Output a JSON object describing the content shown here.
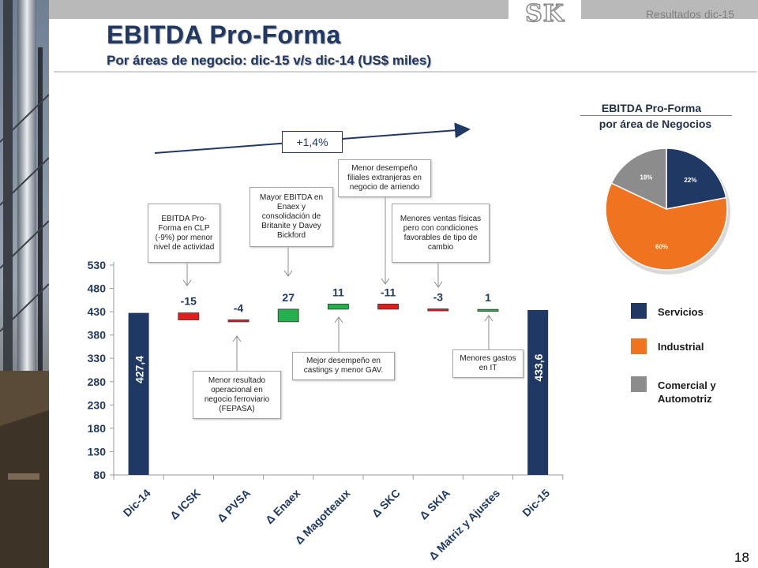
{
  "header": {
    "period_label": "Resultados dic-15",
    "logo_text": "SK",
    "title": "EBITDA Pro-Forma",
    "subtitle": "Por áreas de negocio: dic-15 v/s dic-14 (US$ miles)",
    "page_number": "18"
  },
  "growth_label": "+1,4%",
  "annotations": [
    {
      "key": "icsk",
      "text": "EBITDA Pro-Forma en CLP (-9%) por menor nivel de actividad"
    },
    {
      "key": "pvsa",
      "text": "Menor resultado operacional en negocio ferroviario (FEPASA)"
    },
    {
      "key": "enaex",
      "text": "Mayor EBITDA en Enaex y consolidación de Britanite y Davey Bickford"
    },
    {
      "key": "magotteaux",
      "text": "Mejor desempeño en castings y menor GAV."
    },
    {
      "key": "skc",
      "text": "Menor desempeño filiales extranjeras en negocio de arriendo"
    },
    {
      "key": "skia",
      "text": "Menores ventas físicas pero con condiciones favorables de tipo de cambio"
    },
    {
      "key": "matriz",
      "text": "Menores gastos en IT"
    }
  ],
  "pie": {
    "title_line1": "EBITDA Pro-Forma",
    "title_line2": "por área de Negocios",
    "legend": [
      {
        "label": "Servicios",
        "color": "#1f3864"
      },
      {
        "label": "Industrial",
        "color": "#f07320"
      },
      {
        "label": "Comercial y Automotriz",
        "color": "#8c8c8c"
      }
    ]
  },
  "chart_data": [
    {
      "type": "bar",
      "subtype": "waterfall",
      "categories": [
        "Dic-14",
        "Δ ICSK",
        "Δ PVSA",
        "Δ Enaex",
        "Δ Magotteaux",
        "Δ SKC",
        "Δ SKIA",
        "Δ Matriz y Ajustes",
        "Dic-15"
      ],
      "values": [
        427.4,
        -15,
        -4,
        27,
        11,
        -11,
        -3,
        1,
        433.6
      ],
      "data_labels": [
        "427,4",
        "-15",
        "-4",
        "27",
        "11",
        "-11",
        "-3",
        "1",
        "433,6"
      ],
      "bar_kinds": [
        "total",
        "delta",
        "delta",
        "delta",
        "delta",
        "delta",
        "delta",
        "delta",
        "total"
      ],
      "yticks": [
        80,
        130,
        180,
        230,
        280,
        330,
        380,
        430,
        480,
        530
      ],
      "ylim": [
        80,
        530
      ],
      "colors": {
        "total": "#1f3864",
        "increase": "#22b14c",
        "decrease": "#e31b1b"
      },
      "grid": false
    },
    {
      "type": "pie",
      "labels": [
        "Servicios",
        "Industrial",
        "Comercial y Automotriz"
      ],
      "values": [
        22,
        60,
        18
      ],
      "value_labels": [
        "22%",
        "60%",
        "18%"
      ],
      "colors": [
        "#1f3864",
        "#f07320",
        "#8c8c8c"
      ]
    }
  ]
}
